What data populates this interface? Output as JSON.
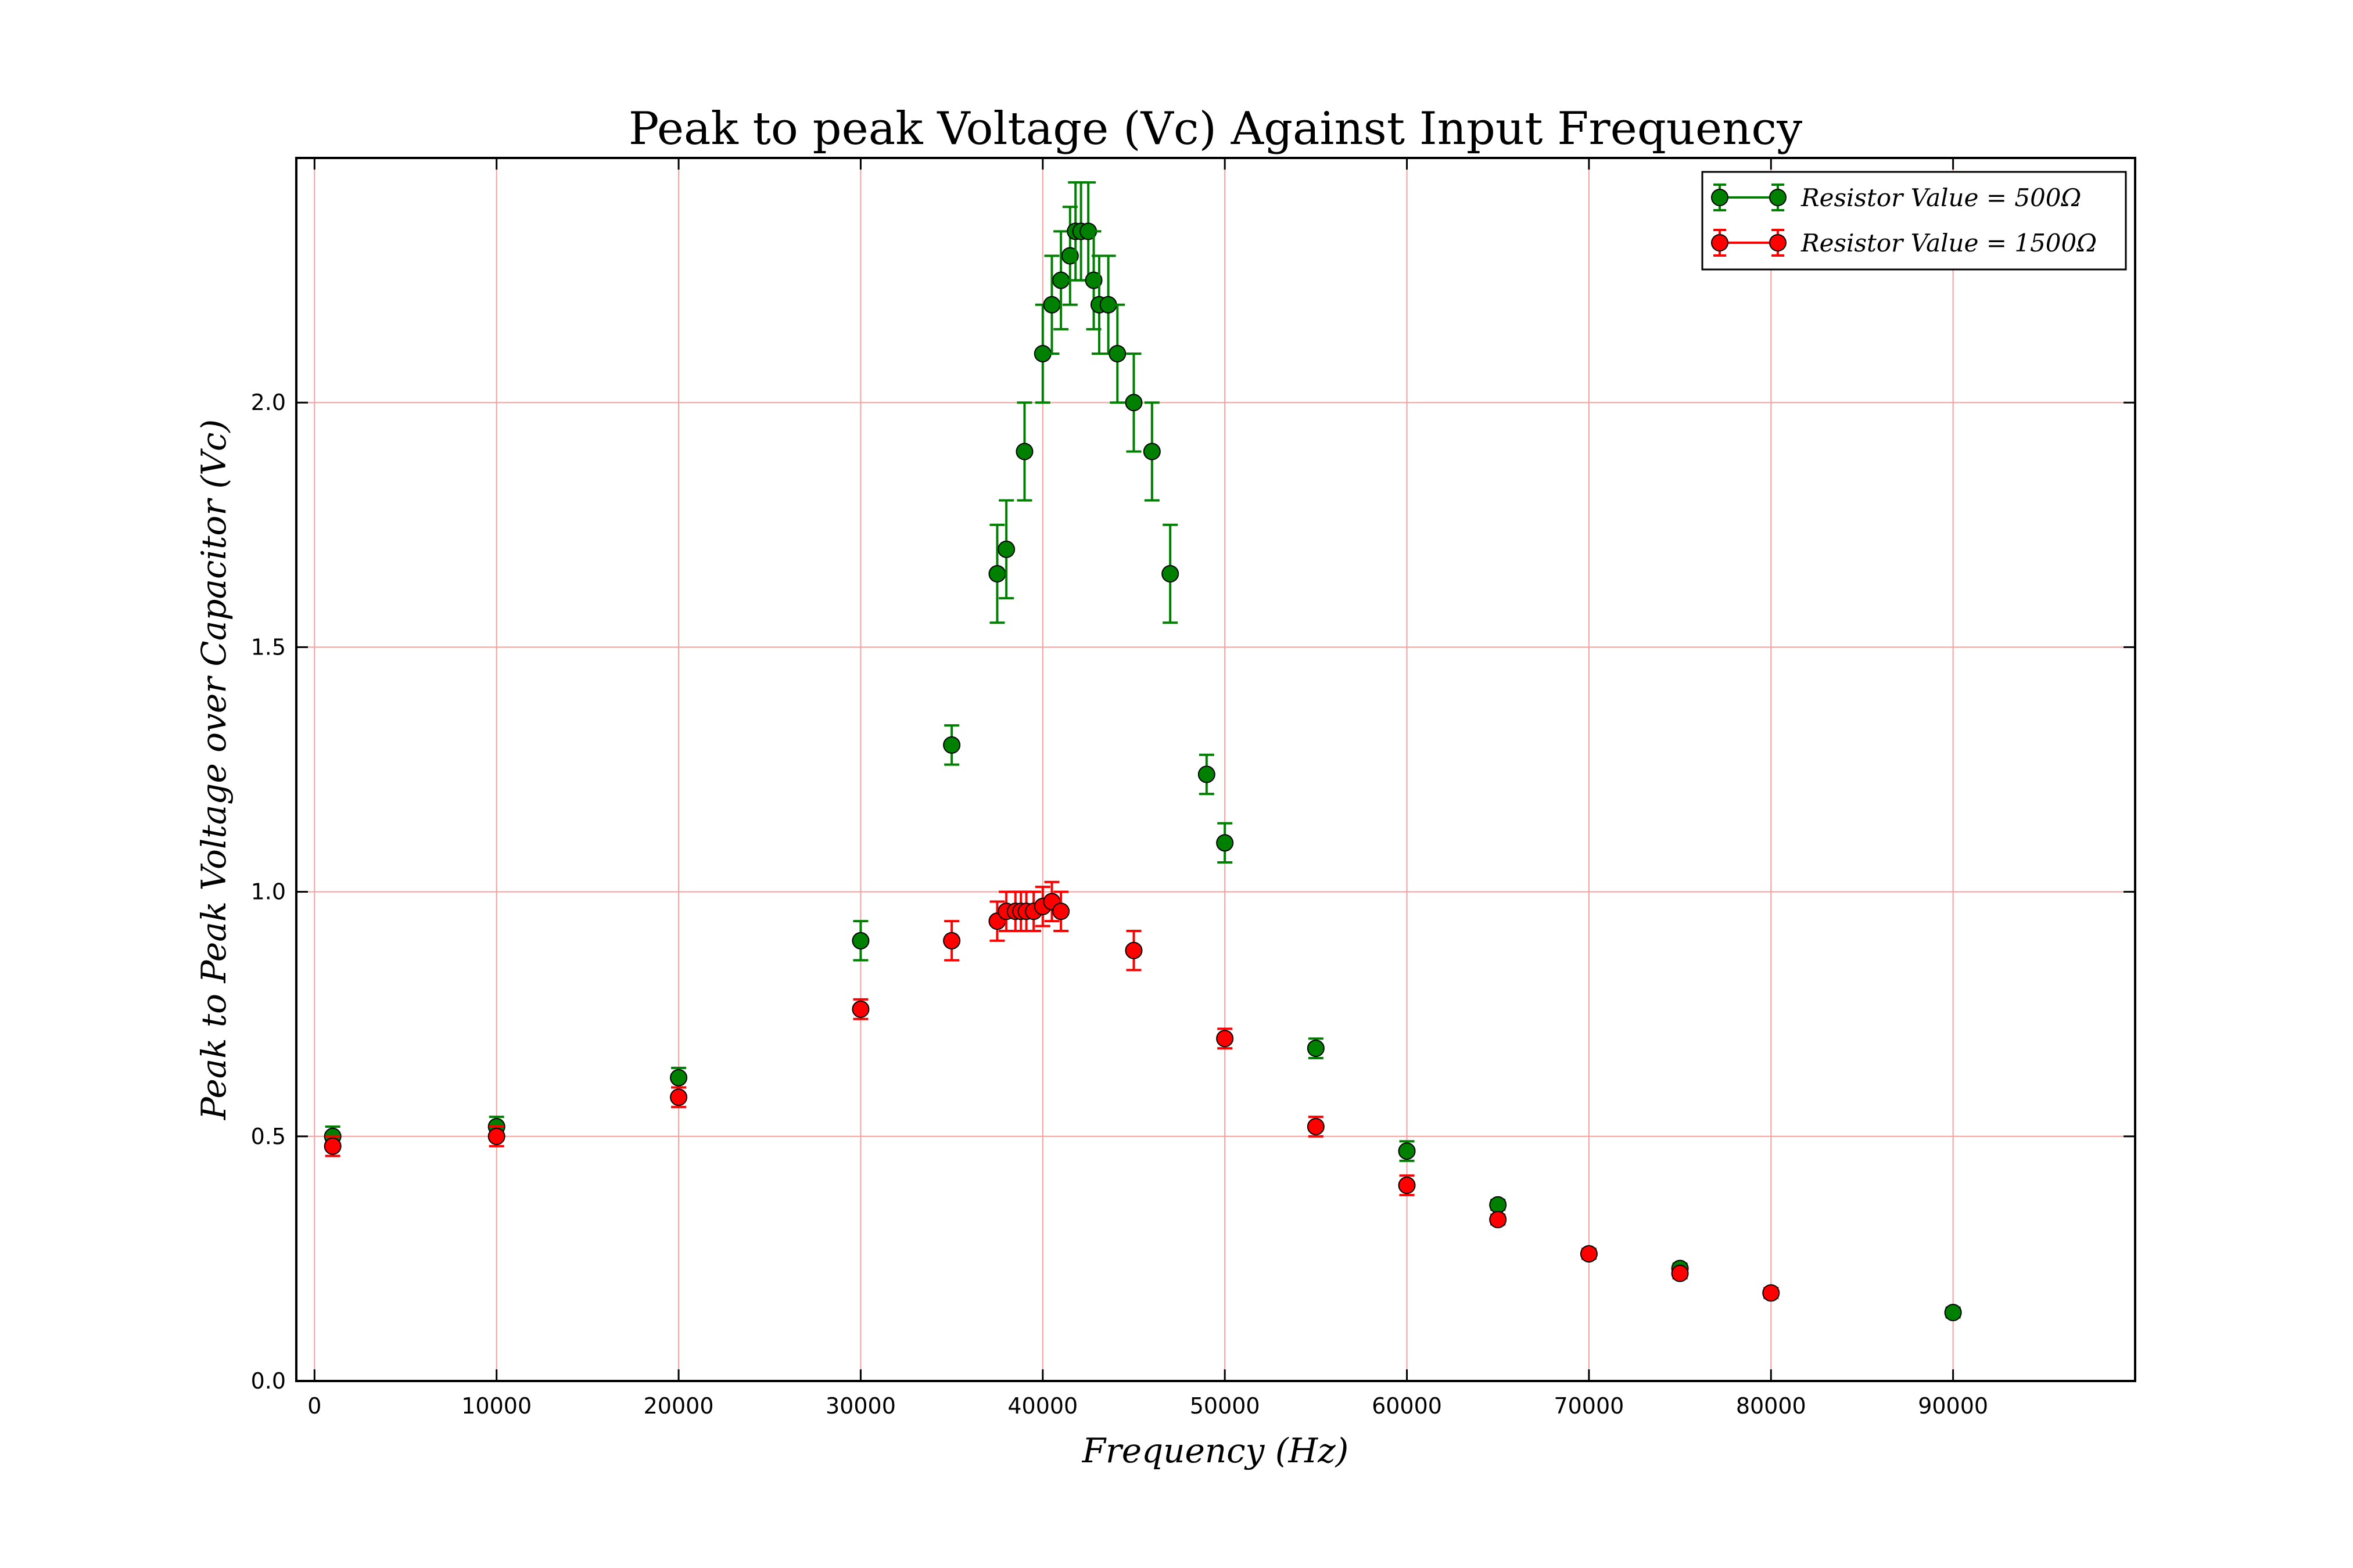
{
  "chart_data": {
    "type": "scatter",
    "title": "Peak to peak Voltage (Vc) Against Input Frequency",
    "xlabel": "Frequency (Hz)",
    "ylabel": "Peak to Peak Voltage over Capacitor (Vc)",
    "xlim": [
      -1000,
      100000
    ],
    "ylim": [
      0.0,
      2.5
    ],
    "xticks": [
      0,
      10000,
      20000,
      30000,
      40000,
      50000,
      60000,
      70000,
      80000,
      90000
    ],
    "yticks": [
      0.0,
      0.5,
      1.0,
      1.5,
      2.0
    ],
    "xtick_labels": [
      "0",
      "10000",
      "20000",
      "30000",
      "40000",
      "50000",
      "60000",
      "70000",
      "80000",
      "90000"
    ],
    "ytick_labels": [
      "0.0",
      "0.5",
      "1.0",
      "1.5",
      "2.0"
    ],
    "grid": true,
    "grid_color": "#f2a0a0",
    "legend_position": "top-right",
    "series": [
      {
        "name": "Resistor Value = 500Ω",
        "color": "#008000",
        "points": [
          {
            "x": 1000,
            "y": 0.5,
            "err": 0.02
          },
          {
            "x": 10000,
            "y": 0.52,
            "err": 0.02
          },
          {
            "x": 20000,
            "y": 0.62,
            "err": 0.02
          },
          {
            "x": 30000,
            "y": 0.9,
            "err": 0.04
          },
          {
            "x": 35000,
            "y": 1.3,
            "err": 0.04
          },
          {
            "x": 37500,
            "y": 1.65,
            "err": 0.1
          },
          {
            "x": 38000,
            "y": 1.7,
            "err": 0.1
          },
          {
            "x": 39000,
            "y": 1.9,
            "err": 0.1
          },
          {
            "x": 40000,
            "y": 2.1,
            "err": 0.1
          },
          {
            "x": 40500,
            "y": 2.2,
            "err": 0.1
          },
          {
            "x": 41000,
            "y": 2.25,
            "err": 0.1
          },
          {
            "x": 41500,
            "y": 2.3,
            "err": 0.1
          },
          {
            "x": 41800,
            "y": 2.35,
            "err": 0.1
          },
          {
            "x": 42100,
            "y": 2.35,
            "err": 0.1
          },
          {
            "x": 42500,
            "y": 2.35,
            "err": 0.1
          },
          {
            "x": 42800,
            "y": 2.25,
            "err": 0.1
          },
          {
            "x": 43100,
            "y": 2.2,
            "err": 0.1
          },
          {
            "x": 43600,
            "y": 2.2,
            "err": 0.1
          },
          {
            "x": 44100,
            "y": 2.1,
            "err": 0.1
          },
          {
            "x": 45000,
            "y": 2.0,
            "err": 0.1
          },
          {
            "x": 46000,
            "y": 1.9,
            "err": 0.1
          },
          {
            "x": 47000,
            "y": 1.65,
            "err": 0.1
          },
          {
            "x": 49000,
            "y": 1.24,
            "err": 0.04
          },
          {
            "x": 50000,
            "y": 1.1,
            "err": 0.04
          },
          {
            "x": 55000,
            "y": 0.68,
            "err": 0.02
          },
          {
            "x": 60000,
            "y": 0.47,
            "err": 0.02
          },
          {
            "x": 65000,
            "y": 0.36,
            "err": 0.01
          },
          {
            "x": 75000,
            "y": 0.23,
            "err": 0.01
          },
          {
            "x": 90000,
            "y": 0.14,
            "err": 0.01
          }
        ]
      },
      {
        "name": "Resistor Value = 1500Ω",
        "color": "#ff0000",
        "points": [
          {
            "x": 1000,
            "y": 0.48,
            "err": 0.02
          },
          {
            "x": 10000,
            "y": 0.5,
            "err": 0.02
          },
          {
            "x": 20000,
            "y": 0.58,
            "err": 0.02
          },
          {
            "x": 30000,
            "y": 0.76,
            "err": 0.02
          },
          {
            "x": 35000,
            "y": 0.9,
            "err": 0.04
          },
          {
            "x": 37500,
            "y": 0.94,
            "err": 0.04
          },
          {
            "x": 38000,
            "y": 0.96,
            "err": 0.04
          },
          {
            "x": 38500,
            "y": 0.96,
            "err": 0.04
          },
          {
            "x": 38800,
            "y": 0.96,
            "err": 0.04
          },
          {
            "x": 39100,
            "y": 0.96,
            "err": 0.04
          },
          {
            "x": 39500,
            "y": 0.96,
            "err": 0.04
          },
          {
            "x": 40000,
            "y": 0.97,
            "err": 0.04
          },
          {
            "x": 40500,
            "y": 0.98,
            "err": 0.04
          },
          {
            "x": 41000,
            "y": 0.96,
            "err": 0.04
          },
          {
            "x": 45000,
            "y": 0.88,
            "err": 0.04
          },
          {
            "x": 50000,
            "y": 0.7,
            "err": 0.02
          },
          {
            "x": 55000,
            "y": 0.52,
            "err": 0.02
          },
          {
            "x": 60000,
            "y": 0.4,
            "err": 0.02
          },
          {
            "x": 65000,
            "y": 0.33,
            "err": 0.01
          },
          {
            "x": 70000,
            "y": 0.26,
            "err": 0.01
          },
          {
            "x": 75000,
            "y": 0.22,
            "err": 0.01
          },
          {
            "x": 80000,
            "y": 0.18,
            "err": 0.01
          }
        ]
      }
    ]
  }
}
